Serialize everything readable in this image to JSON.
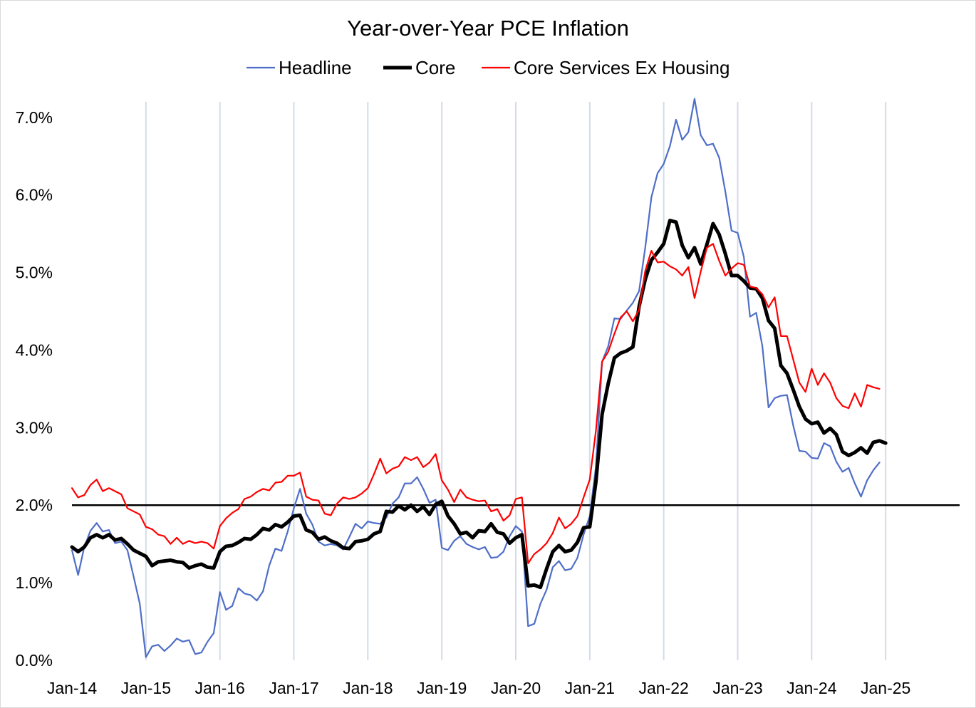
{
  "chart_data": {
    "type": "line",
    "title": "Year-over-Year PCE Inflation",
    "xlabel": "",
    "ylabel": "",
    "ylim": [
      0,
      0.072
    ],
    "y_ticks": [
      "0.0%",
      "1.0%",
      "2.0%",
      "3.0%",
      "4.0%",
      "5.0%",
      "6.0%",
      "7.0%"
    ],
    "y_tick_values": [
      0,
      0.01,
      0.02,
      0.03,
      0.04,
      0.05,
      0.06,
      0.07
    ],
    "x_ticks": [
      "Jan-14",
      "Jan-15",
      "Jan-16",
      "Jan-17",
      "Jan-18",
      "Jan-19",
      "Jan-20",
      "Jan-21",
      "Jan-22",
      "Jan-23",
      "Jan-24",
      "Jan-25"
    ],
    "x_start": "Jan-14",
    "x_end": "Jan-26",
    "reference_line": 0.02,
    "grid": "vertical",
    "legend_position": "top",
    "colors": {
      "headline": "#4f6ec7",
      "core": "#000000",
      "core_services": "#ff0000",
      "grid": "#d4dbe8"
    },
    "series": [
      {
        "name": "Headline",
        "color": "#4f6ec7",
        "values": [
          0.0142,
          0.011,
          0.0146,
          0.0167,
          0.0177,
          0.0166,
          0.0168,
          0.0151,
          0.0153,
          0.0142,
          0.0108,
          0.0073,
          0.0004,
          0.0018,
          0.002,
          0.0012,
          0.0019,
          0.0028,
          0.0024,
          0.0026,
          0.0008,
          0.001,
          0.0024,
          0.0035,
          0.0088,
          0.0065,
          0.007,
          0.0093,
          0.0086,
          0.0084,
          0.0077,
          0.0089,
          0.0122,
          0.0144,
          0.0141,
          0.0166,
          0.0196,
          0.0221,
          0.0189,
          0.0175,
          0.0153,
          0.0148,
          0.015,
          0.0148,
          0.0143,
          0.0159,
          0.0176,
          0.017,
          0.0179,
          0.0177,
          0.0176,
          0.0184,
          0.0202,
          0.021,
          0.0228,
          0.0228,
          0.0236,
          0.0221,
          0.0203,
          0.0207,
          0.0145,
          0.0142,
          0.0154,
          0.016,
          0.015,
          0.0146,
          0.0143,
          0.0146,
          0.0132,
          0.0133,
          0.014,
          0.016,
          0.0173,
          0.0166,
          0.0044,
          0.0047,
          0.0073,
          0.0091,
          0.012,
          0.0128,
          0.0116,
          0.0118,
          0.0132,
          0.0162,
          0.0186,
          0.025,
          0.0385,
          0.0405,
          0.0441,
          0.044,
          0.0451,
          0.0461,
          0.0476,
          0.0532,
          0.0597,
          0.0628,
          0.064,
          0.0663,
          0.0697,
          0.0671,
          0.0681,
          0.0724,
          0.0677,
          0.0664,
          0.0666,
          0.0648,
          0.0604,
          0.0554,
          0.0551,
          0.052,
          0.0443,
          0.0448,
          0.0405,
          0.0326,
          0.0338,
          0.0341,
          0.0342,
          0.0303,
          0.027,
          0.0269,
          0.0261,
          0.026,
          0.028,
          0.0276,
          0.0256,
          0.0243,
          0.0248,
          0.0228,
          0.0211,
          0.0232,
          0.0245,
          0.0255
        ]
      },
      {
        "name": "Core",
        "color": "#000000",
        "values": [
          0.0146,
          0.014,
          0.0146,
          0.0158,
          0.0162,
          0.0158,
          0.0162,
          0.0155,
          0.0157,
          0.015,
          0.0142,
          0.0138,
          0.0134,
          0.0122,
          0.0127,
          0.0128,
          0.0129,
          0.0127,
          0.0126,
          0.0119,
          0.0122,
          0.0124,
          0.012,
          0.0119,
          0.014,
          0.0147,
          0.0148,
          0.0152,
          0.0157,
          0.0156,
          0.0162,
          0.017,
          0.0168,
          0.0175,
          0.0172,
          0.0178,
          0.0186,
          0.0187,
          0.0168,
          0.0165,
          0.0156,
          0.0159,
          0.0154,
          0.0151,
          0.0145,
          0.0144,
          0.0153,
          0.0154,
          0.0156,
          0.0163,
          0.0166,
          0.0192,
          0.0191,
          0.0199,
          0.0194,
          0.02,
          0.0192,
          0.0198,
          0.0188,
          0.0201,
          0.0205,
          0.0186,
          0.0176,
          0.0163,
          0.0165,
          0.0158,
          0.0167,
          0.0166,
          0.0176,
          0.0165,
          0.0163,
          0.0151,
          0.0158,
          0.0162,
          0.0096,
          0.0097,
          0.0094,
          0.0118,
          0.014,
          0.0148,
          0.014,
          0.0142,
          0.0152,
          0.0171,
          0.0172,
          0.023,
          0.0317,
          0.0357,
          0.039,
          0.0396,
          0.0399,
          0.0404,
          0.0456,
          0.0491,
          0.0516,
          0.0526,
          0.0537,
          0.0567,
          0.0565,
          0.0535,
          0.0519,
          0.0532,
          0.0511,
          0.0536,
          0.0563,
          0.0549,
          0.0524,
          0.0496,
          0.0496,
          0.0489,
          0.048,
          0.0479,
          0.0467,
          0.0438,
          0.0428,
          0.038,
          0.037,
          0.0349,
          0.0327,
          0.0311,
          0.0305,
          0.0307,
          0.0293,
          0.0299,
          0.0291,
          0.0269,
          0.0264,
          0.0268,
          0.0274,
          0.0267,
          0.0281,
          0.0283,
          0.028
        ]
      },
      {
        "name": "Core Services Ex Housing",
        "color": "#ff0000",
        "values": [
          0.0222,
          0.021,
          0.0213,
          0.0226,
          0.0233,
          0.0218,
          0.0222,
          0.0218,
          0.0214,
          0.0196,
          0.0192,
          0.0188,
          0.0172,
          0.0169,
          0.0162,
          0.016,
          0.015,
          0.0158,
          0.015,
          0.0154,
          0.0151,
          0.0153,
          0.0151,
          0.0144,
          0.0173,
          0.0183,
          0.019,
          0.0195,
          0.0208,
          0.0211,
          0.0217,
          0.0221,
          0.0219,
          0.0229,
          0.023,
          0.0238,
          0.0238,
          0.0242,
          0.0211,
          0.0207,
          0.0206,
          0.0189,
          0.0187,
          0.0202,
          0.021,
          0.0208,
          0.021,
          0.0215,
          0.0222,
          0.024,
          0.026,
          0.0241,
          0.0247,
          0.025,
          0.0262,
          0.0258,
          0.0262,
          0.0249,
          0.0255,
          0.0266,
          0.0232,
          0.022,
          0.0204,
          0.022,
          0.021,
          0.0207,
          0.0205,
          0.0206,
          0.0192,
          0.0195,
          0.018,
          0.0187,
          0.0208,
          0.021,
          0.0125,
          0.0137,
          0.0143,
          0.0151,
          0.0164,
          0.0184,
          0.017,
          0.0176,
          0.0186,
          0.021,
          0.0233,
          0.0296,
          0.0385,
          0.0398,
          0.0421,
          0.0442,
          0.045,
          0.0437,
          0.0452,
          0.0502,
          0.0528,
          0.0513,
          0.0514,
          0.0508,
          0.0504,
          0.0496,
          0.0507,
          0.0467,
          0.0501,
          0.0532,
          0.0537,
          0.0515,
          0.0496,
          0.0505,
          0.0512,
          0.051,
          0.0482,
          0.048,
          0.0472,
          0.0455,
          0.0468,
          0.0418,
          0.0418,
          0.0388,
          0.0358,
          0.0346,
          0.0376,
          0.0355,
          0.037,
          0.0358,
          0.0338,
          0.0328,
          0.0325,
          0.0344,
          0.0327,
          0.0355,
          0.0352,
          0.035
        ]
      }
    ]
  }
}
